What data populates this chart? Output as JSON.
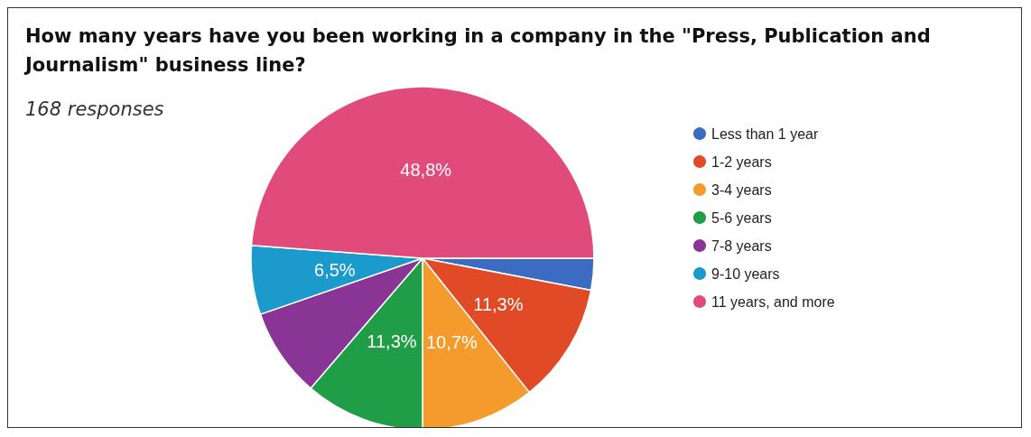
{
  "chart_data": {
    "type": "pie",
    "title": "How many years have you been working in a company in the \"Press, Publication and Journalism\" business line?",
    "subtitle": "168 responses",
    "categories": [
      "Less than 1 year",
      "1-2 years",
      "3-4 years",
      "5-6 years",
      "7-8 years",
      "9-10 years",
      "11 years, and more"
    ],
    "values": [
      3.0,
      11.3,
      10.7,
      11.3,
      8.4,
      6.5,
      48.8
    ],
    "value_labels": [
      null,
      "11,3%",
      "10,7%",
      "11,3%",
      null,
      "6,5%",
      "48,8%"
    ],
    "colors": [
      "#3a6cc2",
      "#e04a27",
      "#f59a2c",
      "#1f9d47",
      "#883596",
      "#1b9bcb",
      "#e04b7b"
    ],
    "legend": "right"
  }
}
